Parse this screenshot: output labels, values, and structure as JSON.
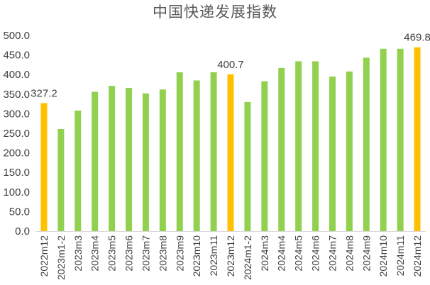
{
  "chart_data": {
    "type": "bar",
    "title": "中国快递发展指数",
    "xlabel": "",
    "ylabel": "",
    "ylim": [
      0,
      500
    ],
    "yticks": [
      "0.0",
      "50.0",
      "100.0",
      "150.0",
      "200.0",
      "250.0",
      "300.0",
      "350.0",
      "400.0",
      "450.0",
      "500.0"
    ],
    "grid": false,
    "legend": "none",
    "colors": {
      "default": "#92D050",
      "highlight": "#FFC000",
      "axis": "#D9D9D9"
    },
    "categories": [
      "2022m12",
      "2023m1-2",
      "2023m3",
      "2023m4",
      "2023m5",
      "2023m6",
      "2023m7",
      "2023m8",
      "2023m9",
      "2023m10",
      "2023m11",
      "2023m12",
      "2024m1-2",
      "2024m3",
      "2024m4",
      "2024m5",
      "2024m6",
      "2024m7",
      "2024m8",
      "2024m9",
      "2024m10",
      "2024m11",
      "2024m12"
    ],
    "values": [
      327.2,
      261,
      308,
      356,
      371,
      366,
      352,
      362,
      406,
      385,
      406,
      400.7,
      330,
      383,
      417,
      434,
      434,
      395,
      408,
      443,
      466,
      466,
      469.8
    ],
    "highlight": [
      true,
      false,
      false,
      false,
      false,
      false,
      false,
      false,
      false,
      false,
      false,
      true,
      false,
      false,
      false,
      false,
      false,
      false,
      false,
      false,
      false,
      false,
      true
    ],
    "data_labels": [
      "327.2",
      "",
      "",
      "",
      "",
      "",
      "",
      "",
      "",
      "",
      "",
      "400.7",
      "",
      "",
      "",
      "",
      "",
      "",
      "",
      "",
      "",
      "",
      "469.8"
    ]
  }
}
